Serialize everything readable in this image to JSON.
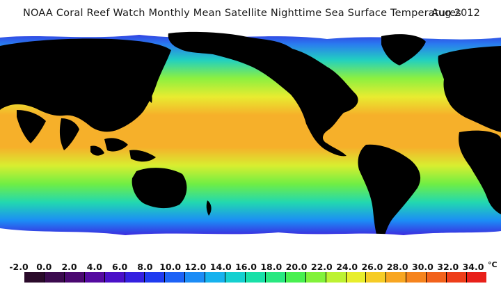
{
  "header": {
    "title": "NOAA Coral Reef Watch Monthly Mean Satellite Nighttime Sea Surface Temperatures",
    "date": "Aug 2012"
  },
  "legend": {
    "unit": "°C",
    "ticks": [
      "-2.0",
      "0.0",
      "2.0",
      "4.0",
      "6.0",
      "8.0",
      "10.0",
      "12.0",
      "14.0",
      "16.0",
      "18.0",
      "20.0",
      "22.0",
      "24.0",
      "26.0",
      "28.0",
      "30.0",
      "32.0",
      "34.0"
    ],
    "colors": [
      "#2a0a2a",
      "#3b0a4e",
      "#4a0870",
      "#540aa0",
      "#4a10c8",
      "#3420e0",
      "#1f3bf0",
      "#1d62f6",
      "#1c8cf6",
      "#16b2ee",
      "#14d0d0",
      "#18e0a8",
      "#28e880",
      "#48f050",
      "#82f23a",
      "#bdf232",
      "#e8ee2c",
      "#f6cc26",
      "#f8a622",
      "#f6841e",
      "#f2621c",
      "#ee3e1a",
      "#e8201a"
    ],
    "colors_meaning": "color scale from cold (dark purple) to warm (red)"
  },
  "map": {
    "colors": {
      "land": "#000000",
      "ice": "#ffffff",
      "cold_ocean": "#5a10d0",
      "temperate_ocean": "#1ad0c8",
      "warm_ocean": "#8cf040",
      "hot_ocean": "#f6a828"
    }
  }
}
